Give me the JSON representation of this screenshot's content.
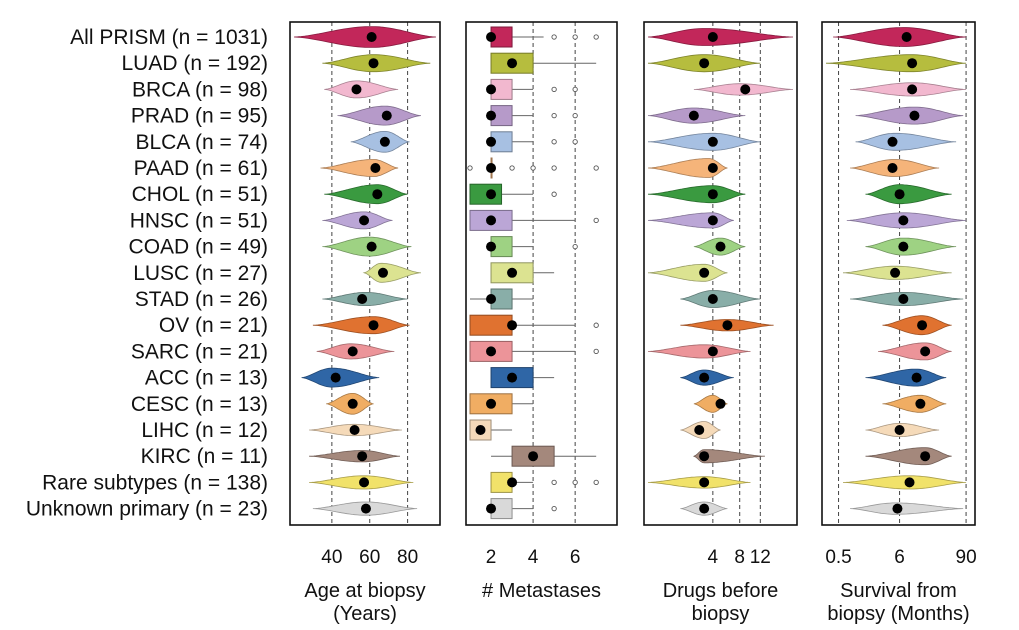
{
  "colors": {
    "All PRISM": "#c2275a",
    "LUAD": "#b6bd3e",
    "BRCA": "#f2b8cf",
    "PRAD": "#b69ac9",
    "BLCA": "#a7c0e2",
    "PAAD": "#f5b47a",
    "CHOL": "#3a9a40",
    "HNSC": "#bba6d6",
    "COAD": "#9ed283",
    "LUSC": "#dce391",
    "STAD": "#89aea8",
    "OV": "#e07230",
    "SARC": "#ec9499",
    "ACC": "#2f66a6",
    "CESC": "#f0ad63",
    "LIHC": "#f5dab9",
    "KIRC": "#a4887c",
    "Rare subtypes": "#f1e26a",
    "Unknown primary": "#d9d9d9"
  },
  "chart_data": {
    "type": "violin",
    "categories": [
      {
        "key": "All PRISM",
        "label": "All PRISM (n = 1031)"
      },
      {
        "key": "LUAD",
        "label": "LUAD (n = 192)"
      },
      {
        "key": "BRCA",
        "label": "BRCA (n = 98)"
      },
      {
        "key": "PRAD",
        "label": "PRAD (n = 95)"
      },
      {
        "key": "BLCA",
        "label": "BLCA (n = 74)"
      },
      {
        "key": "PAAD",
        "label": "PAAD (n = 61)"
      },
      {
        "key": "CHOL",
        "label": "CHOL (n = 51)"
      },
      {
        "key": "HNSC",
        "label": "HNSC (n = 51)"
      },
      {
        "key": "COAD",
        "label": "COAD (n = 49)"
      },
      {
        "key": "LUSC",
        "label": "LUSC (n = 27)"
      },
      {
        "key": "STAD",
        "label": "STAD (n = 26)"
      },
      {
        "key": "OV",
        "label": "OV (n = 21)"
      },
      {
        "key": "SARC",
        "label": "SARC (n = 21)"
      },
      {
        "key": "ACC",
        "label": "ACC (n = 13)"
      },
      {
        "key": "CESC",
        "label": "CESC (n = 13)"
      },
      {
        "key": "LIHC",
        "label": "LIHC (n = 12)"
      },
      {
        "key": "KIRC",
        "label": "KIRC (n = 11)"
      },
      {
        "key": "Rare subtypes",
        "label": "Rare subtypes (n = 138)"
      },
      {
        "key": "Unknown primary",
        "label": "Unknown primary (n = 23)"
      }
    ],
    "panels": [
      {
        "id": "age",
        "kind": "violin",
        "xlabel": [
          "Age at biopsy",
          "(Years)"
        ],
        "scale": "linear",
        "xlim": [
          20,
          95
        ],
        "ticks": [
          {
            "v": 40,
            "t": "40"
          },
          {
            "v": 60,
            "t": "60"
          },
          {
            "v": 80,
            "t": "80"
          }
        ],
        "gridlines": [
          40,
          60,
          80
        ],
        "rows": [
          {
            "min": 20,
            "max": 95,
            "median": 61,
            "widest": 61,
            "halfwidth": 0.55
          },
          {
            "min": 35,
            "max": 92,
            "median": 62,
            "widest": 62,
            "halfwidth": 0.45
          },
          {
            "min": 36,
            "max": 75,
            "median": 53,
            "widest": 53,
            "halfwidth": 0.45
          },
          {
            "min": 43,
            "max": 87,
            "median": 69,
            "widest": 68,
            "halfwidth": 0.5
          },
          {
            "min": 50,
            "max": 81,
            "median": 68,
            "widest": 68,
            "halfwidth": 0.55
          },
          {
            "min": 34,
            "max": 75,
            "median": 63,
            "widest": 62,
            "halfwidth": 0.45
          },
          {
            "min": 36,
            "max": 80,
            "median": 64,
            "widest": 64,
            "halfwidth": 0.5
          },
          {
            "min": 35,
            "max": 72,
            "median": 57,
            "widest": 57,
            "halfwidth": 0.45
          },
          {
            "min": 35,
            "max": 82,
            "median": 61,
            "widest": 60,
            "halfwidth": 0.5
          },
          {
            "min": 57,
            "max": 87,
            "median": 67,
            "widest": 66,
            "halfwidth": 0.5
          },
          {
            "min": 35,
            "max": 80,
            "median": 56,
            "widest": 58,
            "halfwidth": 0.35
          },
          {
            "min": 30,
            "max": 81,
            "median": 62,
            "widest": 62,
            "halfwidth": 0.45
          },
          {
            "min": 32,
            "max": 73,
            "median": 51,
            "widest": 50,
            "halfwidth": 0.4
          },
          {
            "min": 24,
            "max": 65,
            "median": 42,
            "widest": 40,
            "halfwidth": 0.5
          },
          {
            "min": 37,
            "max": 62,
            "median": 51,
            "widest": 51,
            "halfwidth": 0.55
          },
          {
            "min": 28,
            "max": 77,
            "median": 52,
            "widest": 52,
            "halfwidth": 0.3
          },
          {
            "min": 28,
            "max": 76,
            "median": 56,
            "widest": 56,
            "halfwidth": 0.3
          },
          {
            "min": 28,
            "max": 83,
            "median": 57,
            "widest": 57,
            "halfwidth": 0.35
          },
          {
            "min": 30,
            "max": 85,
            "median": 58,
            "widest": 58,
            "halfwidth": 0.35
          }
        ]
      },
      {
        "id": "metastases",
        "kind": "box",
        "xlabel": [
          "# Metastases",
          ""
        ],
        "scale": "linear",
        "xlim": [
          1,
          7.8
        ],
        "ticks": [
          {
            "v": 2,
            "t": "2"
          },
          {
            "v": 4,
            "t": "4"
          },
          {
            "v": 6,
            "t": "6"
          }
        ],
        "gridlines": [
          4,
          6
        ],
        "rows": [
          {
            "q1": 2,
            "q3": 3,
            "median": 2,
            "wlo": 2,
            "whi": 4.5,
            "outliers": [
              5,
              6,
              7,
              8
            ]
          },
          {
            "q1": 2,
            "q3": 4,
            "median": 3,
            "wlo": 2,
            "whi": 7,
            "outliers": [
              8
            ]
          },
          {
            "q1": 2,
            "q3": 3,
            "median": 2,
            "wlo": 2,
            "whi": 4,
            "outliers": [
              5,
              6,
              8
            ]
          },
          {
            "q1": 2,
            "q3": 3,
            "median": 2,
            "wlo": 2,
            "whi": 4,
            "outliers": [
              5,
              6
            ]
          },
          {
            "q1": 2,
            "q3": 3,
            "median": 2,
            "wlo": 2,
            "whi": 4,
            "outliers": [
              5,
              6
            ]
          },
          {
            "q1": 2,
            "q3": 2,
            "median": 2,
            "wlo": 2,
            "whi": 2,
            "outliers": [
              1,
              3,
              4,
              5,
              7
            ]
          },
          {
            "q1": 1,
            "q3": 2.5,
            "median": 2,
            "wlo": 1,
            "whi": 4,
            "outliers": [
              5
            ]
          },
          {
            "q1": 1,
            "q3": 3,
            "median": 2,
            "wlo": 1,
            "whi": 6,
            "outliers": [
              7
            ]
          },
          {
            "q1": 2,
            "q3": 3,
            "median": 2,
            "wlo": 2,
            "whi": 4,
            "outliers": [
              6
            ]
          },
          {
            "q1": 2,
            "q3": 4,
            "median": 3,
            "wlo": 2,
            "whi": 5,
            "outliers": [
              8
            ]
          },
          {
            "q1": 2,
            "q3": 3,
            "median": 2,
            "wlo": 1,
            "whi": 4,
            "outliers": []
          },
          {
            "q1": 1,
            "q3": 3,
            "median": 3,
            "wlo": 1,
            "whi": 6,
            "outliers": [
              7
            ]
          },
          {
            "q1": 1,
            "q3": 3,
            "median": 2,
            "wlo": 1,
            "whi": 6,
            "outliers": [
              7,
              8
            ]
          },
          {
            "q1": 2,
            "q3": 4,
            "median": 3,
            "wlo": 2,
            "whi": 5,
            "outliers": []
          },
          {
            "q1": 1,
            "q3": 3,
            "median": 2,
            "wlo": 1,
            "whi": 4,
            "outliers": []
          },
          {
            "q1": 1,
            "q3": 2,
            "median": 1.5,
            "wlo": 1,
            "whi": 3,
            "outliers": []
          },
          {
            "q1": 3,
            "q3": 5,
            "median": 4,
            "wlo": 2,
            "whi": 7,
            "outliers": []
          },
          {
            "q1": 2,
            "q3": 3,
            "median": 3,
            "wlo": 2,
            "whi": 4,
            "outliers": [
              5,
              6,
              7
            ]
          },
          {
            "q1": 2,
            "q3": 3,
            "median": 2,
            "wlo": 2,
            "whi": 4,
            "outliers": [
              5
            ]
          }
        ]
      },
      {
        "id": "drugs",
        "kind": "violin",
        "xlabel": [
          "Drugs before",
          "biopsy"
        ],
        "scale": "sqrt",
        "xlim": [
          0,
          20
        ],
        "ticks": [
          {
            "v": 4,
            "t": "4"
          },
          {
            "v": 8,
            "t": "8"
          },
          {
            "v": 12,
            "t": "12"
          }
        ],
        "gridlines": [
          4,
          8,
          12
        ],
        "rows": [
          {
            "min": 0,
            "max": 20,
            "median": 4,
            "widest": 3,
            "halfwidth": 0.45
          },
          {
            "min": 0,
            "max": 12,
            "median": 3,
            "widest": 3,
            "halfwidth": 0.45
          },
          {
            "min": 2,
            "max": 20,
            "median": 9,
            "widest": 8,
            "halfwidth": 0.3
          },
          {
            "min": 0,
            "max": 9,
            "median": 2,
            "widest": 2,
            "halfwidth": 0.4
          },
          {
            "min": 0,
            "max": 12,
            "median": 4,
            "widest": 4,
            "halfwidth": 0.45
          },
          {
            "min": 0,
            "max": 6,
            "median": 4,
            "widest": 3.5,
            "halfwidth": 0.5
          },
          {
            "min": 0,
            "max": 9,
            "median": 4,
            "widest": 4,
            "halfwidth": 0.45
          },
          {
            "min": 0,
            "max": 7,
            "median": 4,
            "widest": 4,
            "halfwidth": 0.4
          },
          {
            "min": 2,
            "max": 9,
            "median": 5,
            "widest": 5,
            "halfwidth": 0.45
          },
          {
            "min": 0,
            "max": 6,
            "median": 3,
            "widest": 3,
            "halfwidth": 0.45
          },
          {
            "min": 1,
            "max": 12,
            "median": 4,
            "widest": 4,
            "halfwidth": 0.45
          },
          {
            "min": 1,
            "max": 15,
            "median": 6,
            "widest": 6,
            "halfwidth": 0.3
          },
          {
            "min": 0,
            "max": 10,
            "median": 4,
            "widest": 3,
            "halfwidth": 0.35
          },
          {
            "min": 1,
            "max": 7,
            "median": 3,
            "widest": 3,
            "halfwidth": 0.4
          },
          {
            "min": 2,
            "max": 6,
            "median": 5,
            "widest": 4,
            "halfwidth": 0.45
          },
          {
            "min": 1,
            "max": 5,
            "median": 2.5,
            "widest": 3,
            "halfwidth": 0.45
          },
          {
            "min": 2,
            "max": 13,
            "median": 3,
            "widest": 3,
            "halfwidth": 0.35
          },
          {
            "min": 0,
            "max": 10,
            "median": 3,
            "widest": 3,
            "halfwidth": 0.3
          },
          {
            "min": 1,
            "max": 6,
            "median": 3,
            "widest": 3,
            "halfwidth": 0.35
          }
        ]
      },
      {
        "id": "survival",
        "kind": "violin",
        "xlabel": [
          "Survival from",
          "biopsy (Months)"
        ],
        "scale": "log",
        "xlim": [
          0.3,
          110
        ],
        "ticks": [
          {
            "v": 0.5,
            "t": "0.5"
          },
          {
            "v": 6,
            "t": "6"
          },
          {
            "v": 90,
            "t": "90"
          }
        ],
        "gridlines": [
          0.5,
          6,
          90
        ],
        "rows": [
          {
            "min": 0.4,
            "max": 90,
            "median": 8,
            "widest": 7,
            "halfwidth": 0.5
          },
          {
            "min": 0.3,
            "max": 90,
            "median": 10,
            "widest": 10,
            "halfwidth": 0.45
          },
          {
            "min": 0.8,
            "max": 90,
            "median": 10,
            "widest": 10,
            "halfwidth": 0.35
          },
          {
            "min": 1,
            "max": 80,
            "median": 11,
            "widest": 11,
            "halfwidth": 0.45
          },
          {
            "min": 1,
            "max": 60,
            "median": 4.5,
            "widest": 5,
            "halfwidth": 0.45
          },
          {
            "min": 0.8,
            "max": 30,
            "median": 4.5,
            "widest": 5,
            "halfwidth": 0.45
          },
          {
            "min": 1.5,
            "max": 50,
            "median": 6,
            "widest": 6,
            "halfwidth": 0.5
          },
          {
            "min": 0.7,
            "max": 90,
            "median": 7,
            "widest": 7,
            "halfwidth": 0.4
          },
          {
            "min": 1.5,
            "max": 60,
            "median": 7,
            "widest": 7,
            "halfwidth": 0.45
          },
          {
            "min": 0.6,
            "max": 50,
            "median": 5,
            "widest": 5,
            "halfwidth": 0.35
          },
          {
            "min": 0.8,
            "max": 80,
            "median": 7,
            "widest": 7,
            "halfwidth": 0.35
          },
          {
            "min": 3,
            "max": 50,
            "median": 15,
            "widest": 15,
            "halfwidth": 0.5
          },
          {
            "min": 2.5,
            "max": 50,
            "median": 17,
            "widest": 17,
            "halfwidth": 0.45
          },
          {
            "min": 1.5,
            "max": 40,
            "median": 12,
            "widest": 12,
            "halfwidth": 0.45
          },
          {
            "min": 3,
            "max": 40,
            "median": 14,
            "widest": 14,
            "halfwidth": 0.45
          },
          {
            "min": 1.5,
            "max": 30,
            "median": 6,
            "widest": 6,
            "halfwidth": 0.35
          },
          {
            "min": 1.5,
            "max": 50,
            "median": 17,
            "widest": 17,
            "halfwidth": 0.45
          },
          {
            "min": 0.6,
            "max": 90,
            "median": 9,
            "widest": 9,
            "halfwidth": 0.35
          },
          {
            "min": 0.8,
            "max": 80,
            "median": 5.5,
            "widest": 5,
            "halfwidth": 0.3
          }
        ]
      }
    ]
  }
}
